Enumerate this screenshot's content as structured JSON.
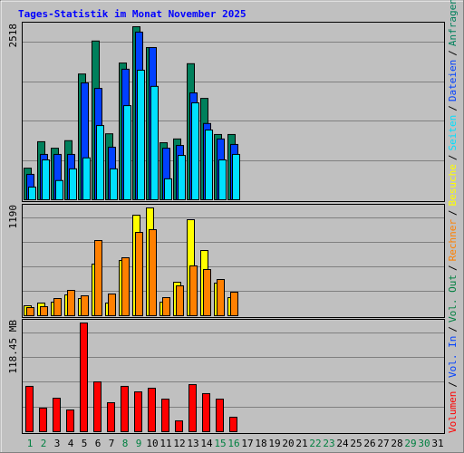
{
  "legend_separator": "/",
  "chart_data": [
    {
      "type": "bar",
      "title": "Tages-Statistik im Monat November 2025",
      "ylim": [
        0,
        2518
      ],
      "yticks": [
        2518
      ],
      "series": [
        {
          "name": "Anfragen",
          "color": "#00805c",
          "values": [
            460,
            845,
            750,
            860,
            1830,
            2310,
            960,
            1990,
            2518,
            2215,
            830,
            885,
            1980,
            1475,
            950,
            950,
            null,
            null,
            null,
            null,
            null,
            null,
            null,
            null,
            null,
            null,
            null,
            null,
            null,
            null,
            null
          ]
        },
        {
          "name": "Dateien",
          "color": "#0040ff",
          "values": [
            370,
            660,
            660,
            660,
            1700,
            1620,
            765,
            1900,
            2440,
            2215,
            750,
            790,
            1555,
            1110,
            885,
            805,
            null,
            null,
            null,
            null,
            null,
            null,
            null,
            null,
            null,
            null,
            null,
            null,
            null,
            null,
            null
          ]
        },
        {
          "name": "Seiten",
          "color": "#00e0ff",
          "values": [
            185,
            580,
            280,
            450,
            610,
            1080,
            450,
            1370,
            1885,
            1650,
            305,
            645,
            1410,
            1015,
            580,
            660,
            null,
            null,
            null,
            null,
            null,
            null,
            null,
            null,
            null,
            null,
            null,
            null,
            null,
            null,
            null
          ]
        }
      ]
    },
    {
      "type": "bar",
      "ylim": [
        0,
        1190
      ],
      "yticks": [
        1190
      ],
      "series": [
        {
          "name": "Besuche",
          "color": "#ffff00",
          "values": [
            110,
            140,
            150,
            230,
            190,
            570,
            140,
            610,
            1110,
            1190,
            150,
            370,
            1060,
            720,
            360,
            200,
            null,
            null,
            null,
            null,
            null,
            null,
            null,
            null,
            null,
            null,
            null,
            null,
            null,
            null,
            null
          ]
        },
        {
          "name": "Rechner",
          "color": "#ff8000",
          "values": [
            90,
            100,
            190,
            280,
            220,
            830,
            240,
            640,
            920,
            950,
            200,
            330,
            550,
            510,
            400,
            260,
            null,
            null,
            null,
            null,
            null,
            null,
            null,
            null,
            null,
            null,
            null,
            null,
            null,
            null,
            null
          ]
        }
      ]
    },
    {
      "type": "bar",
      "ylim": [
        0,
        118.45
      ],
      "yticks": [
        {
          "value": 118.45,
          "label": "118.45 MB"
        }
      ],
      "categories": [
        1,
        2,
        3,
        4,
        5,
        6,
        7,
        8,
        9,
        10,
        11,
        12,
        13,
        14,
        15,
        16,
        17,
        18,
        19,
        20,
        21,
        22,
        23,
        24,
        25,
        26,
        27,
        28,
        29,
        30,
        31
      ],
      "category_colors": [
        "#008040",
        "#008040",
        "#000000",
        "#000000",
        "#000000",
        "#000000",
        "#000000",
        "#008040",
        "#008040",
        "#000000",
        "#000000",
        "#000000",
        "#000000",
        "#000000",
        "#008040",
        "#008040",
        "#000000",
        "#000000",
        "#000000",
        "#000000",
        "#000000",
        "#008040",
        "#008040",
        "#000000",
        "#000000",
        "#000000",
        "#000000",
        "#000000",
        "#008040",
        "#008040",
        "#000000"
      ],
      "series": [
        {
          "name": "Vol. Out",
          "color": "#008040",
          "values": [
            null,
            null,
            null,
            null,
            null,
            null,
            null,
            null,
            null,
            null,
            null,
            null,
            null,
            null,
            null,
            null,
            null,
            null,
            null,
            null,
            null,
            null,
            null,
            null,
            null,
            null,
            null,
            null,
            null,
            null,
            null
          ]
        },
        {
          "name": "Vol. In",
          "color": "#0040ff",
          "values": [
            null,
            null,
            null,
            null,
            null,
            null,
            null,
            null,
            null,
            null,
            null,
            null,
            null,
            null,
            null,
            null,
            null,
            null,
            null,
            null,
            null,
            null,
            null,
            null,
            null,
            null,
            null,
            null,
            null,
            null,
            null
          ]
        },
        {
          "name": "Volumen",
          "color": "#ff0000",
          "values": [
            49.4,
            25.7,
            36.5,
            23.7,
            118.45,
            54.3,
            31.6,
            49.4,
            43.4,
            47.4,
            35.5,
            11.8,
            51.3,
            41.5,
            35.5,
            15.8,
            null,
            null,
            null,
            null,
            null,
            null,
            null,
            null,
            null,
            null,
            null,
            null,
            null,
            null,
            null
          ]
        }
      ]
    }
  ]
}
